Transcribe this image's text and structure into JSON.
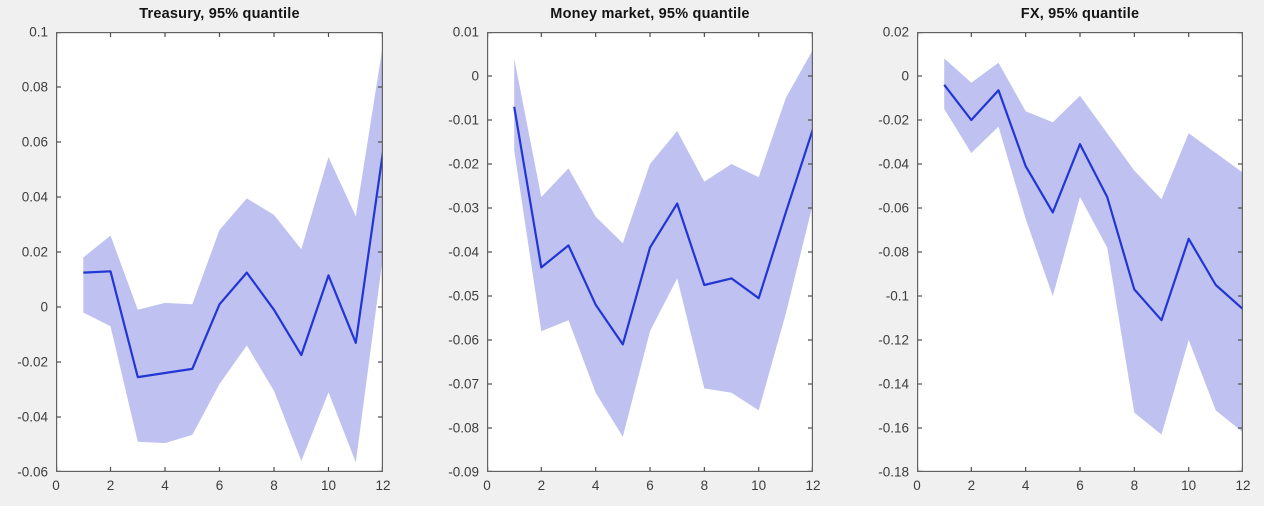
{
  "figure": {
    "background_color": "#f0f0f0",
    "plot_background_color": "#ffffff",
    "band_color": "#bfc2f1",
    "line_color": "#2136d4",
    "axis_color": "#636363",
    "tick_color": "#4d4d4d",
    "tick_label_color": "#3d3d3d",
    "title_color": "#141414"
  },
  "chart_data": [
    {
      "type": "area",
      "title": "Treasury, 95% quantile",
      "x": [
        1,
        2,
        3,
        4,
        5,
        6,
        7,
        8,
        9,
        10,
        11,
        12
      ],
      "series": [
        {
          "name": "median",
          "values": [
            0.0125,
            0.013,
            -0.0255,
            -0.024,
            -0.0225,
            0.001,
            0.0125,
            -0.001,
            -0.0175,
            0.0115,
            -0.013,
            0.0565
          ]
        },
        {
          "name": "upper_95_band",
          "values": [
            0.018,
            0.026,
            -0.001,
            0.0015,
            0.001,
            0.028,
            0.0395,
            0.0335,
            0.021,
            0.0545,
            0.033,
            0.0955
          ]
        },
        {
          "name": "lower_95_band",
          "values": [
            -0.002,
            -0.007,
            -0.049,
            -0.0495,
            -0.0465,
            -0.028,
            -0.014,
            -0.0305,
            -0.056,
            -0.031,
            -0.0565,
            0.0185
          ]
        }
      ],
      "xlim": [
        0,
        12
      ],
      "ylim": [
        -0.06,
        0.1
      ],
      "xticks": [
        0,
        2,
        4,
        6,
        8,
        10,
        12
      ],
      "xtick_labels": [
        "0",
        "2",
        "4",
        "6",
        "8",
        "10",
        "12"
      ],
      "yticks": [
        0.1,
        0.08,
        0.06,
        0.04,
        0.02,
        0,
        -0.02,
        -0.04,
        -0.06
      ],
      "ytick_labels": [
        "0.1",
        "0.08",
        "0.06",
        "0.04",
        "0.02",
        "0",
        "-0.02",
        "-0.04",
        "-0.06"
      ],
      "grid": false,
      "legend": "none"
    },
    {
      "type": "area",
      "title": "Money market, 95% quantile",
      "x": [
        1,
        2,
        3,
        4,
        5,
        6,
        7,
        8,
        9,
        10,
        11,
        12
      ],
      "series": [
        {
          "name": "median",
          "values": [
            -0.007,
            -0.0435,
            -0.0385,
            -0.052,
            -0.061,
            -0.039,
            -0.029,
            -0.0475,
            -0.046,
            -0.0505,
            -0.031,
            -0.012
          ]
        },
        {
          "name": "upper_95_band",
          "values": [
            0.004,
            -0.0275,
            -0.021,
            -0.032,
            -0.038,
            -0.02,
            -0.0125,
            -0.024,
            -0.02,
            -0.023,
            -0.005,
            0.006
          ]
        },
        {
          "name": "lower_95_band",
          "values": [
            -0.017,
            -0.058,
            -0.0555,
            -0.072,
            -0.082,
            -0.058,
            -0.046,
            -0.071,
            -0.072,
            -0.076,
            -0.054,
            -0.029
          ]
        }
      ],
      "xlim": [
        0,
        12
      ],
      "ylim": [
        -0.09,
        0.01
      ],
      "xticks": [
        0,
        2,
        4,
        6,
        8,
        10,
        12
      ],
      "xtick_labels": [
        "0",
        "2",
        "4",
        "6",
        "8",
        "10",
        "12"
      ],
      "yticks": [
        0.01,
        0,
        -0.01,
        -0.02,
        -0.03,
        -0.04,
        -0.05,
        -0.06,
        -0.07,
        -0.08,
        -0.09
      ],
      "ytick_labels": [
        "0.01",
        "0",
        "-0.01",
        "-0.02",
        "-0.03",
        "-0.04",
        "-0.05",
        "-0.06",
        "-0.07",
        "-0.08",
        "-0.09"
      ],
      "grid": false,
      "legend": "none"
    },
    {
      "type": "area",
      "title": "FX, 95% quantile",
      "x": [
        1,
        2,
        3,
        4,
        5,
        6,
        7,
        8,
        9,
        10,
        11,
        12
      ],
      "series": [
        {
          "name": "median",
          "values": [
            -0.004,
            -0.02,
            -0.0065,
            -0.041,
            -0.062,
            -0.031,
            -0.055,
            -0.097,
            -0.111,
            -0.074,
            -0.095,
            -0.106
          ]
        },
        {
          "name": "upper_95_band",
          "values": [
            0.008,
            -0.003,
            0.006,
            -0.016,
            -0.021,
            -0.009,
            -0.026,
            -0.043,
            -0.056,
            -0.026,
            -0.035,
            -0.044
          ]
        },
        {
          "name": "lower_95_band",
          "values": [
            -0.015,
            -0.035,
            -0.023,
            -0.065,
            -0.1,
            -0.055,
            -0.078,
            -0.153,
            -0.163,
            -0.12,
            -0.152,
            -0.162
          ]
        }
      ],
      "xlim": [
        0,
        12
      ],
      "ylim": [
        -0.18,
        0.02
      ],
      "xticks": [
        0,
        2,
        4,
        6,
        8,
        10,
        12
      ],
      "xtick_labels": [
        "0",
        "2",
        "4",
        "6",
        "8",
        "10",
        "12"
      ],
      "yticks": [
        0.02,
        0,
        -0.02,
        -0.04,
        -0.06,
        -0.08,
        -0.1,
        -0.12,
        -0.14,
        -0.16,
        -0.18
      ],
      "ytick_labels": [
        "0.02",
        "0",
        "-0.02",
        "-0.04",
        "-0.06",
        "-0.08",
        "-0.1",
        "-0.12",
        "-0.14",
        "-0.16",
        "-0.18"
      ],
      "grid": false,
      "legend": "none"
    }
  ]
}
